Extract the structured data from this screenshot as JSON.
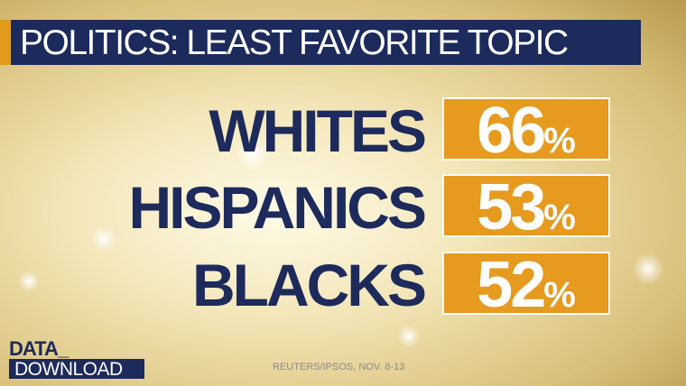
{
  "header": {
    "title": "POLITICS: LEAST FAVORITE TOPIC"
  },
  "rows": [
    {
      "label": "WHITES",
      "number": "66",
      "unit": "%"
    },
    {
      "label": "HISPANICS",
      "number": "53",
      "unit": "%"
    },
    {
      "label": "BLACKS",
      "number": "52",
      "unit": "%"
    }
  ],
  "brand": {
    "line1": "DATA_",
    "line2": "DOWNLOAD"
  },
  "footer": {
    "source": "REUTERS/IPSOS, NOV. 8-13"
  }
}
